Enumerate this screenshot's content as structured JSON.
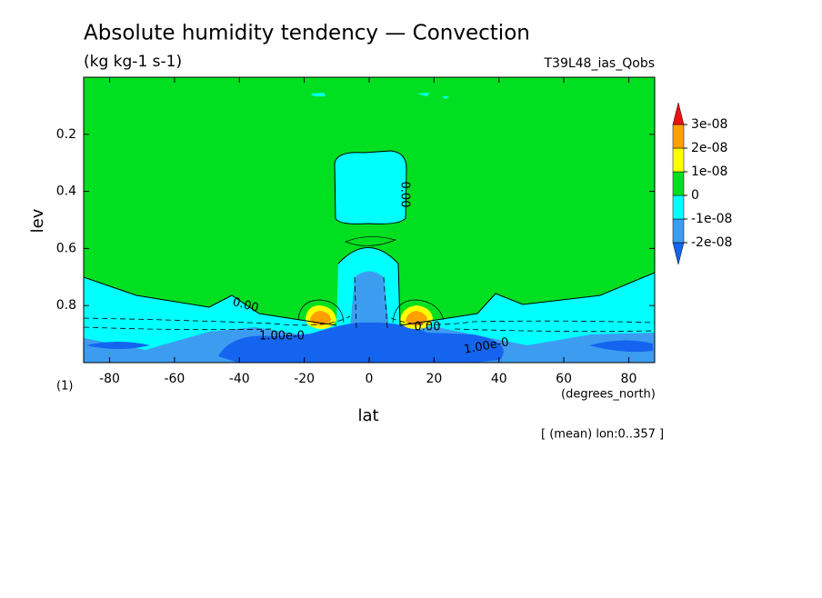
{
  "chart_data": {
    "type": "contour",
    "title": "Absolute humidity tendency — Convection",
    "subtitle": "(kg kg-1 s-1)",
    "run_name": "T39L48_ias_Qobs",
    "xlabel": "lat",
    "xunits": "(degrees_north)",
    "ylabel": "lev",
    "yunits": "(1)",
    "footnote": "[ (mean) lon:0..357 ]",
    "xlim": [
      -88,
      88
    ],
    "xticks": [
      -80,
      -60,
      -40,
      -20,
      0,
      20,
      40,
      60,
      80
    ],
    "ylim": [
      1,
      0
    ],
    "yticks": [
      0.2,
      0.4,
      0.6,
      0.8
    ],
    "colorbar": {
      "levels": [
        {
          "value": -2e-08,
          "label": "-2e-08"
        },
        {
          "value": -1e-08,
          "label": "-1e-08"
        },
        0,
        {
          "value": 1e-08,
          "label": "1e-08"
        },
        {
          "value": 2e-08,
          "label": "2e-08"
        },
        {
          "value": 3e-08,
          "label": "3e-08"
        }
      ],
      "colors": [
        "#1464f0",
        "#3c9cf0",
        "#00ffff",
        "#00e020",
        "#ffff00",
        "#ffa000",
        "#f01010"
      ]
    },
    "contour_labels": [
      "0.00",
      "0.00",
      "1.00e-0",
      "0.00",
      "1.00e-0"
    ]
  }
}
